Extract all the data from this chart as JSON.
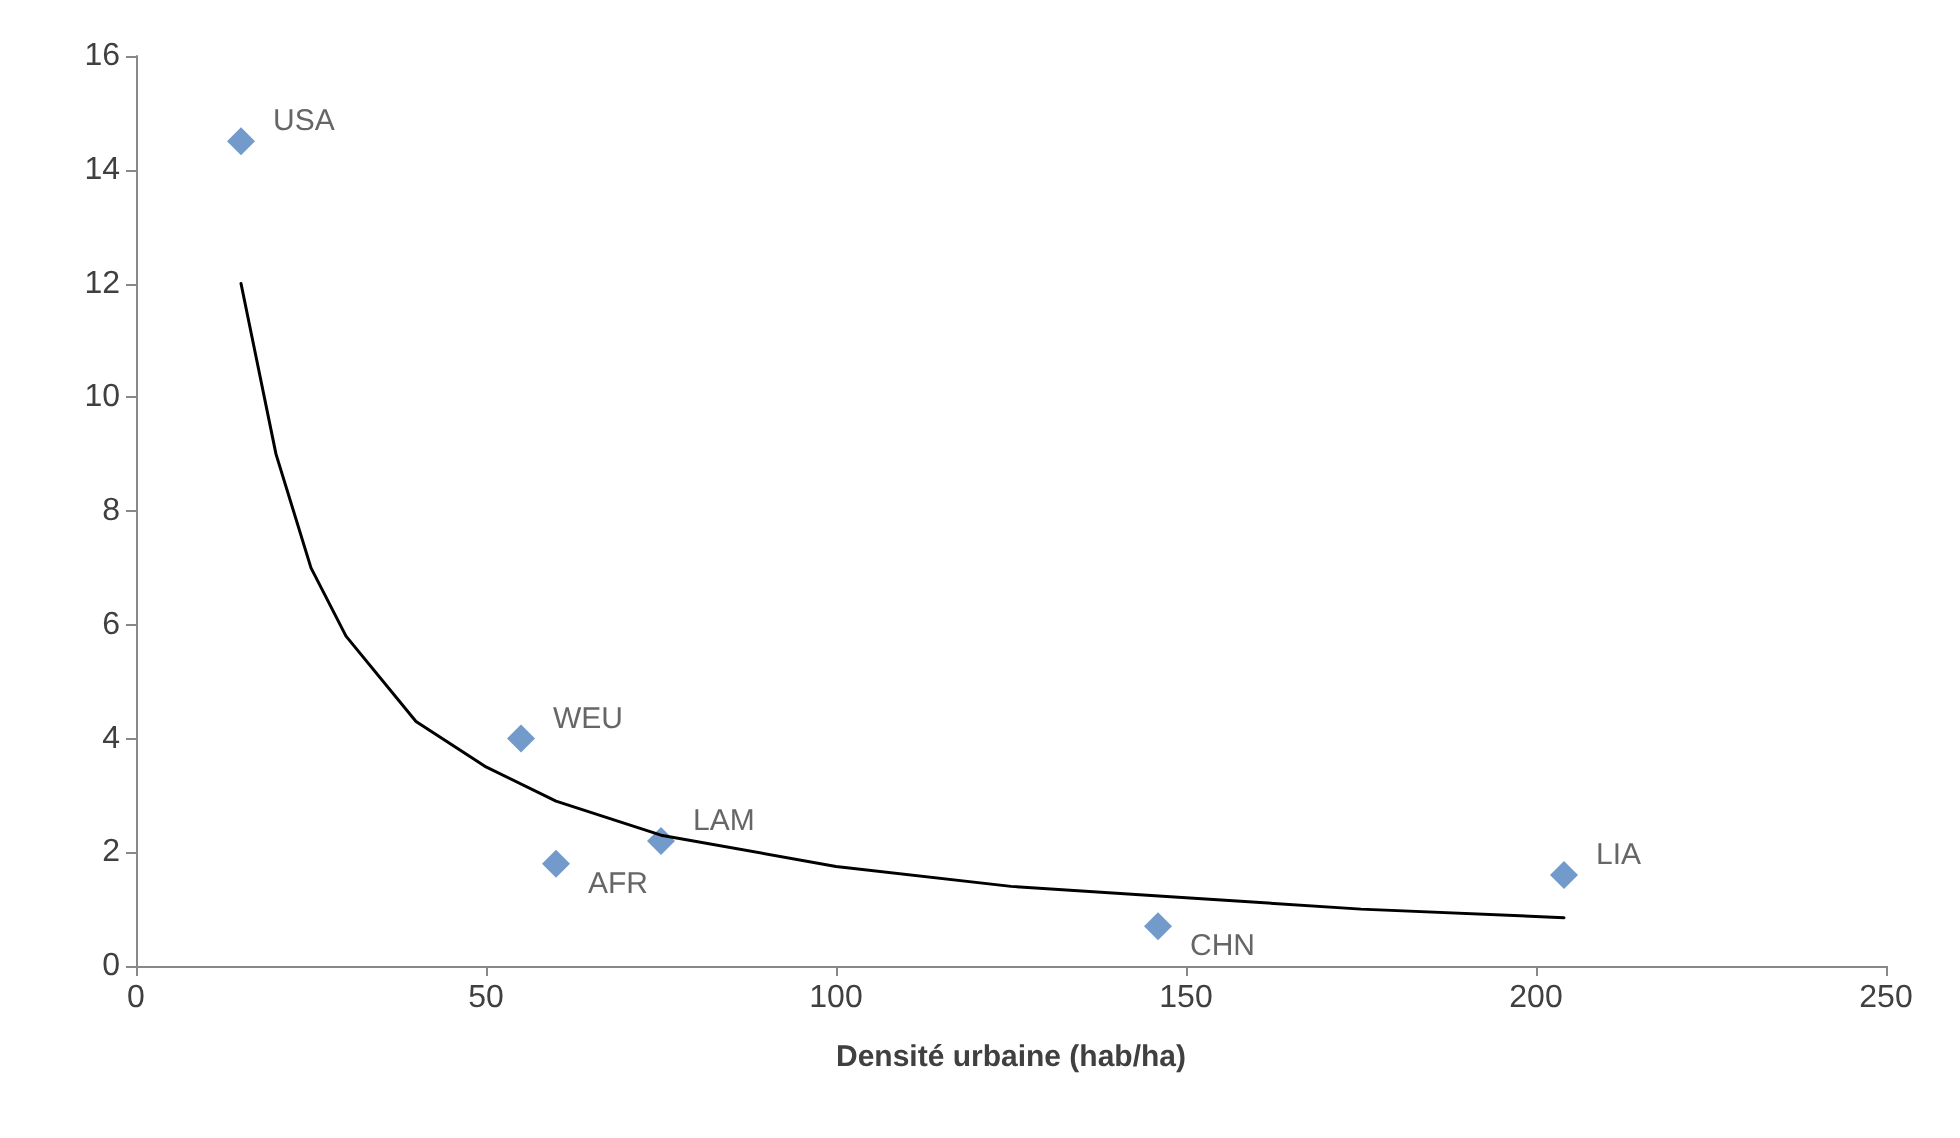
{
  "chart_data": {
    "type": "scatter",
    "xlabel": "Densité urbaine (hab/ha)",
    "xlim": [
      0,
      250
    ],
    "xticks": [
      0,
      50,
      100,
      150,
      200,
      250
    ],
    "ylim": [
      0,
      16
    ],
    "yticks": [
      0,
      2,
      4,
      6,
      8,
      10,
      12,
      14,
      16
    ],
    "grid": false,
    "series": [
      {
        "color": "#4f81bd",
        "marker": "diamond",
        "x": [
          15,
          55,
          60,
          75,
          146,
          204
        ],
        "values": [
          14.5,
          4.0,
          1.8,
          2.2,
          0.7,
          1.6
        ]
      },
      {
        "type": "line",
        "color": "#000000",
        "line_style": "solid",
        "marker": "none",
        "x": [
          15,
          20,
          25,
          30,
          40,
          50,
          60,
          75,
          100,
          125,
          150,
          175,
          204
        ],
        "values": [
          12,
          9.0,
          7.0,
          5.8,
          4.3,
          3.5,
          2.9,
          2.3,
          1.75,
          1.4,
          1.2,
          1.0,
          0.85
        ]
      }
    ],
    "annotations": [
      {
        "text": "USA",
        "x": 15,
        "y": 14.5
      },
      {
        "text": "WEU",
        "x": 55,
        "y": 4.0
      },
      {
        "text": "AFR",
        "x": 60,
        "y": 1.8
      },
      {
        "text": "LAM",
        "x": 75,
        "y": 2.2
      },
      {
        "text": "CHN",
        "x": 146,
        "y": 0.7
      },
      {
        "text": "LIA",
        "x": 204,
        "y": 1.6
      }
    ]
  }
}
